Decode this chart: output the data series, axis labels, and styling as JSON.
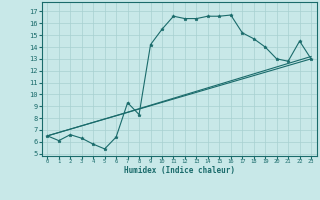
{
  "title": "",
  "xlabel": "Humidex (Indice chaleur)",
  "bg_color": "#c8e8e8",
  "grid_color": "#a8d0d0",
  "line_color": "#1a6b6b",
  "xlim": [
    -0.5,
    23.5
  ],
  "ylim": [
    4.8,
    17.8
  ],
  "xticks": [
    0,
    1,
    2,
    3,
    4,
    5,
    6,
    7,
    8,
    9,
    10,
    11,
    12,
    13,
    14,
    15,
    16,
    17,
    18,
    19,
    20,
    21,
    22,
    23
  ],
  "yticks": [
    5,
    6,
    7,
    8,
    9,
    10,
    11,
    12,
    13,
    14,
    15,
    16,
    17
  ],
  "series": [
    [
      0,
      6.5
    ],
    [
      1,
      6.1
    ],
    [
      2,
      6.6
    ],
    [
      3,
      6.3
    ],
    [
      4,
      5.8
    ],
    [
      5,
      5.4
    ],
    [
      6,
      6.4
    ],
    [
      7,
      9.3
    ],
    [
      8,
      8.3
    ],
    [
      9,
      14.2
    ],
    [
      10,
      15.5
    ],
    [
      11,
      16.6
    ],
    [
      12,
      16.4
    ],
    [
      13,
      16.4
    ],
    [
      14,
      16.6
    ],
    [
      15,
      16.6
    ],
    [
      16,
      16.7
    ],
    [
      17,
      15.2
    ],
    [
      18,
      14.7
    ],
    [
      19,
      14.0
    ],
    [
      20,
      13.0
    ],
    [
      21,
      12.8
    ],
    [
      22,
      14.5
    ],
    [
      23,
      13.0
    ]
  ],
  "line2": [
    [
      0,
      6.5
    ],
    [
      23,
      13.0
    ]
  ],
  "line3": [
    [
      0,
      6.5
    ],
    [
      7,
      8.5
    ],
    [
      23,
      13.2
    ]
  ]
}
